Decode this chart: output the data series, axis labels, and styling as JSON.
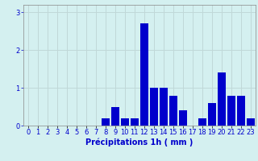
{
  "hours": [
    0,
    1,
    2,
    3,
    4,
    5,
    6,
    7,
    8,
    9,
    10,
    11,
    12,
    13,
    14,
    15,
    16,
    17,
    18,
    19,
    20,
    21,
    22,
    23
  ],
  "values": [
    0,
    0,
    0,
    0,
    0,
    0,
    0,
    0,
    0.2,
    0.5,
    0.2,
    0.2,
    2.7,
    1.0,
    1.0,
    0.8,
    0.4,
    0,
    0.2,
    0.6,
    1.4,
    0.8,
    0.8,
    0.2
  ],
  "bar_color": "#0000cc",
  "background_color": "#d4f0f0",
  "grid_color": "#c0d8d8",
  "xlabel": "Précipitations 1h ( mm )",
  "ylim": [
    0,
    3.2
  ],
  "yticks": [
    0,
    1,
    2,
    3
  ],
  "xlim": [
    -0.5,
    23.5
  ],
  "label_fontsize": 7,
  "tick_fontsize": 6
}
